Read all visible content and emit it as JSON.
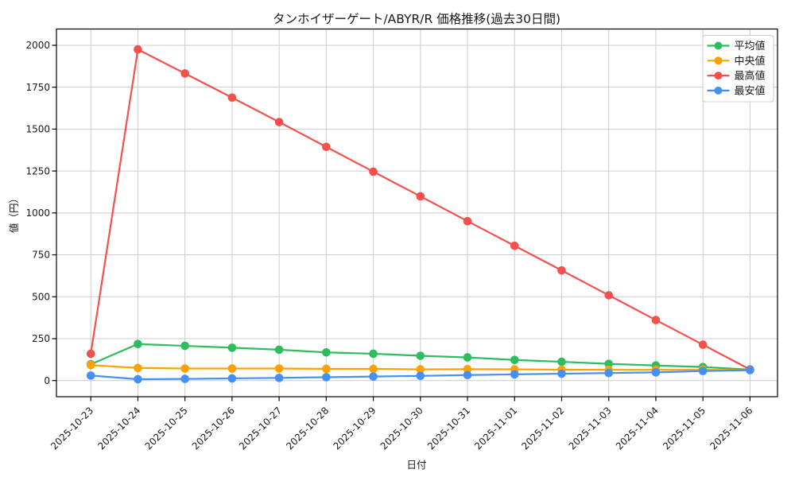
{
  "page": {
    "background_color": "#ffffff"
  },
  "chart_data": {
    "type": "line",
    "title": "タンホイザーゲート/ABYR/R 価格推移(過去30日間)",
    "xlabel": "日付",
    "ylabel": "値（円）",
    "grid": true,
    "legend_position": "top-right",
    "x": [
      "2025-10-23",
      "2025-10-24",
      "2025-10-25",
      "2025-10-26",
      "2025-10-27",
      "2025-10-28",
      "2025-10-29",
      "2025-10-30",
      "2025-10-31",
      "2025-11-01",
      "2025-11-02",
      "2025-11-03",
      "2025-11-04",
      "2025-11-05",
      "2025-11-06"
    ],
    "yticks": [
      0,
      250,
      500,
      750,
      1000,
      1250,
      1500,
      1750,
      2000
    ],
    "ylim": [
      -95,
      2090
    ],
    "series": [
      {
        "name": "平均値",
        "color": "#2dbd5f",
        "marker": "circle",
        "values": [
          97,
          218,
          207,
          196,
          184,
          168,
          160,
          148,
          138,
          123,
          112,
          100,
          90,
          81,
          65
        ]
      },
      {
        "name": "中央値",
        "color": "#ffa201",
        "marker": "circle",
        "values": [
          92,
          75,
          72,
          72,
          72,
          70,
          70,
          67,
          68,
          67,
          65,
          64,
          64,
          64,
          63
        ]
      },
      {
        "name": "最高値",
        "color": "#f4504c",
        "marker": "circle",
        "values": [
          160,
          1975,
          1832,
          1688,
          1542,
          1394,
          1246,
          1099,
          951,
          804,
          657,
          509,
          361,
          214,
          66
        ]
      },
      {
        "name": "最安値",
        "color": "#4590f7",
        "marker": "circle",
        "values": [
          30,
          8,
          10,
          13,
          16,
          20,
          24,
          28,
          33,
          37,
          41,
          45,
          49,
          57,
          62
        ]
      }
    ],
    "style": {
      "grid_color": "#cccccc",
      "spine_color": "#000000",
      "tick_color": "#000000",
      "legend_border_color": "#cccccc",
      "legend_background": "#ffffff"
    }
  }
}
